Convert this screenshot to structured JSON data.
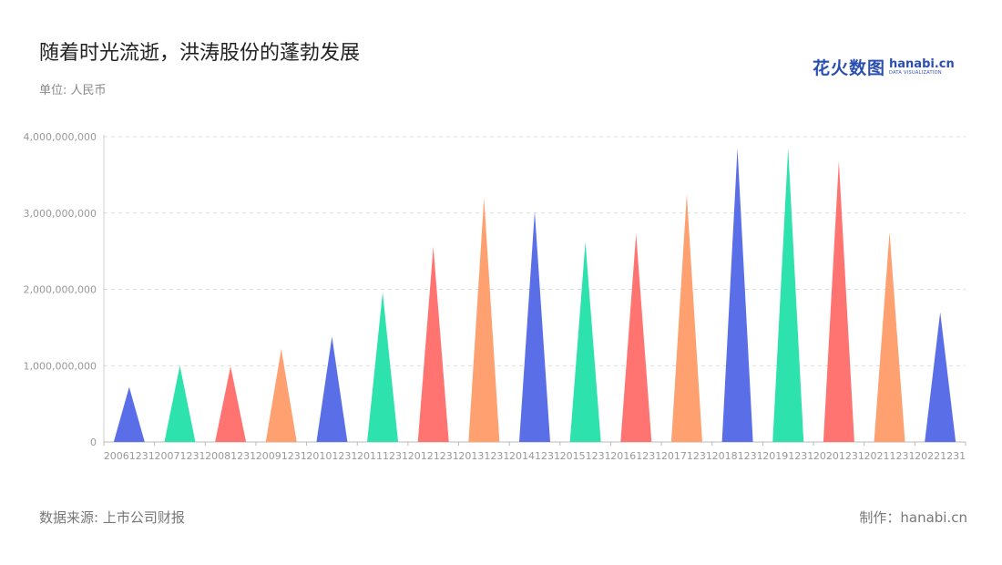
{
  "header": {
    "title": "随着时光流逝，洪涛股份的蓬勃发展",
    "unit": "单位: 人民币"
  },
  "logo": {
    "cn": "花火数图",
    "en": "hanabi.cn",
    "sub": "DATA VISUALIZATION"
  },
  "footer": {
    "source": "数据来源: 上市公司财报",
    "credit": "制作：hanabi.cn"
  },
  "colors": [
    "#5a6ee8",
    "#2de2ad",
    "#ff7370",
    "#ffa070"
  ],
  "chart_data": {
    "type": "bar",
    "bar_shape": "triangle",
    "categories": [
      "20061231",
      "20071231",
      "20081231",
      "20091231",
      "20101231",
      "20111231",
      "20121231",
      "20131231",
      "20141231",
      "20151231",
      "20161231",
      "20171231",
      "20181231",
      "20191231",
      "20201231",
      "20211231",
      "20221231"
    ],
    "values": [
      720000000,
      1000000000,
      990000000,
      1220000000,
      1380000000,
      1960000000,
      2560000000,
      3200000000,
      3020000000,
      2620000000,
      2730000000,
      3250000000,
      3850000000,
      3850000000,
      3680000000,
      2750000000,
      1700000000
    ],
    "yticks": [
      "0",
      "1,000,000,000",
      "2,000,000,000",
      "3,000,000,000",
      "4,000,000,000"
    ],
    "ytick_values": [
      0,
      1000000000,
      2000000000,
      3000000000,
      4000000000
    ],
    "ylim": [
      0,
      4000000000
    ],
    "grid": true,
    "legend": "none"
  }
}
